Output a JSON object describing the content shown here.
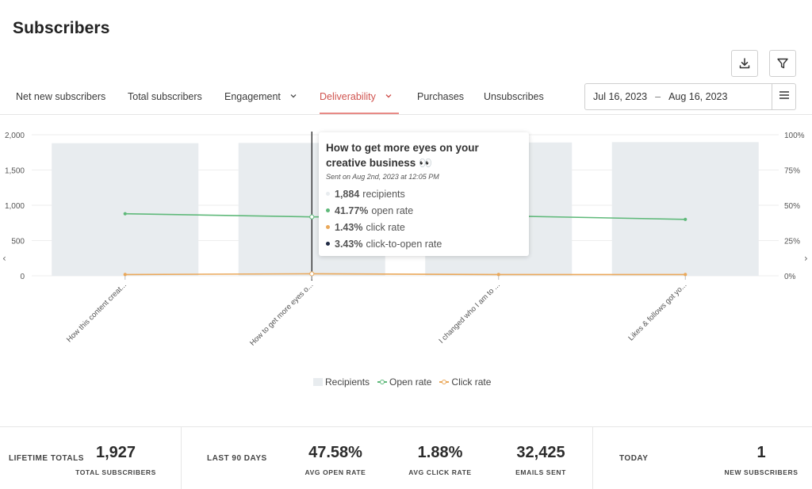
{
  "page": {
    "title": "Subscribers"
  },
  "toolbar": {
    "download_icon": "download-icon",
    "filter_icon": "filter-icon"
  },
  "tabs": [
    {
      "label": "Net new subscribers",
      "dropdown": false,
      "active": false
    },
    {
      "label": "Total subscribers",
      "dropdown": false,
      "active": false
    },
    {
      "label": "Engagement",
      "dropdown": true,
      "active": false
    },
    {
      "label": "Deliverability",
      "dropdown": true,
      "active": true
    },
    {
      "label": "Purchases",
      "dropdown": false,
      "active": false
    },
    {
      "label": "Unsubscribes",
      "dropdown": false,
      "active": false
    }
  ],
  "date_range": {
    "start": "Jul 16, 2023",
    "separator": "–",
    "end": "Aug 16, 2023",
    "menu_icon": "hamburger-icon"
  },
  "colors": {
    "accent": "#d0534f",
    "bar": "#e8ecef",
    "open_rate": "#5fb97a",
    "click_rate": "#eaa85a",
    "ctor": "#1f2a44"
  },
  "chart_data": {
    "type": "bar",
    "categories": [
      "How this content creat...",
      "How to get more eyes o...",
      "I changed who I am to ...",
      "Likes & follows got yo..."
    ],
    "series": [
      {
        "name": "Recipients",
        "type": "bar",
        "axis": "left",
        "values": [
          1880,
          1884,
          1890,
          1895
        ]
      },
      {
        "name": "Open rate",
        "type": "line",
        "axis": "right",
        "values": [
          44.0,
          41.77,
          42.5,
          40.0
        ]
      },
      {
        "name": "Click rate",
        "type": "line",
        "axis": "right",
        "values": [
          0.9,
          1.43,
          0.9,
          0.9
        ]
      }
    ],
    "left_axis": {
      "ticks": [
        "2,000",
        "1,500",
        "1,000",
        "500",
        "0"
      ],
      "ylim": [
        0,
        2000
      ]
    },
    "right_axis": {
      "ticks": [
        "100%",
        "75%",
        "50%",
        "25%",
        "0%"
      ],
      "ylim": [
        0,
        100
      ]
    },
    "grid": true,
    "legend_position": "bottom",
    "hover_index": 1,
    "nav": {
      "prev": "‹",
      "next": "›"
    }
  },
  "tooltip": {
    "title": "How to get more eyes on your creative business 👀",
    "subtitle": "Sent on Aug 2nd, 2023 at 12:05 PM",
    "rows": [
      {
        "value": "1,884",
        "text": "recipients",
        "color": "#e8ecef"
      },
      {
        "value": "41.77%",
        "text": "open rate",
        "color": "#5fb97a"
      },
      {
        "value": "1.43%",
        "text": "click rate",
        "color": "#eaa85a"
      },
      {
        "value": "3.43%",
        "text": "click-to-open rate",
        "color": "#1f2a44"
      }
    ]
  },
  "stats": {
    "lifetime": {
      "label": "LIFETIME TOTALS",
      "value": "1,927",
      "caption": "TOTAL SUBSCRIBERS"
    },
    "last90": {
      "label": "LAST 90 DAYS",
      "open_rate": {
        "value": "47.58%",
        "caption": "AVG OPEN RATE"
      },
      "click_rate": {
        "value": "1.88%",
        "caption": "AVG CLICK RATE"
      },
      "emails_sent": {
        "value": "32,425",
        "caption": "EMAILS SENT"
      }
    },
    "today": {
      "label": "TODAY",
      "value": "1",
      "caption": "NEW SUBSCRIBERS"
    }
  }
}
